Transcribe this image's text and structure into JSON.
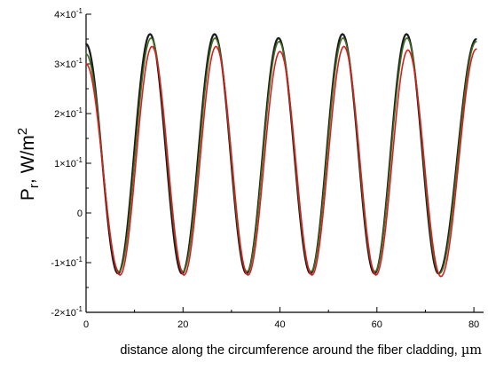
{
  "chart_data": {
    "type": "line",
    "title": "",
    "ylabel": {
      "main": "P",
      "sub": "r",
      "unit": ", W/m",
      "sup": "2"
    },
    "xlabel": {
      "text": "distance along the circumference around the fiber cladding, ",
      "unit": "µm"
    },
    "xlim": [
      0,
      82
    ],
    "ylim": [
      -0.2,
      0.4
    ],
    "x_ticks": [
      0,
      20,
      40,
      60,
      80
    ],
    "x_tick_labels": [
      "0",
      "20",
      "40",
      "60",
      "80"
    ],
    "y_ticks": [
      0.4,
      0.3,
      0.2,
      0.1,
      0,
      -0.1,
      -0.2
    ],
    "y_tick_labels": [
      {
        "base": "4×10",
        "exp": "-1"
      },
      {
        "base": "3×10",
        "exp": "-1"
      },
      {
        "base": "2×10",
        "exp": "-1"
      },
      {
        "base": "1×10",
        "exp": "-1"
      },
      {
        "base": "0",
        "exp": ""
      },
      {
        "base": "-1×10",
        "exp": "-1"
      },
      {
        "base": "-2×10",
        "exp": "-1"
      }
    ],
    "grid": false,
    "legend": "none",
    "series": [
      {
        "color": "#1a1a1a",
        "x": [
          0,
          6.6,
          13.2,
          19.8,
          26.5,
          33.1,
          39.7,
          46.3,
          52.9,
          59.5,
          66.1,
          72.7,
          80.5
        ],
        "y": [
          0.34,
          -0.122,
          0.36,
          -0.122,
          0.36,
          -0.122,
          0.352,
          -0.122,
          0.36,
          -0.122,
          0.36,
          -0.122,
          0.35
        ]
      },
      {
        "color": "#3f6f22",
        "x": [
          0,
          6.8,
          13.4,
          20.0,
          26.6,
          33.2,
          39.8,
          46.4,
          53.0,
          59.6,
          66.2,
          72.9,
          80.5
        ],
        "y": [
          0.32,
          -0.118,
          0.352,
          -0.118,
          0.352,
          -0.118,
          0.345,
          -0.118,
          0.352,
          -0.118,
          0.352,
          -0.122,
          0.345
        ]
      },
      {
        "color": "#d62020",
        "x": [
          0,
          7.0,
          13.6,
          20.2,
          26.8,
          33.4,
          40.0,
          46.6,
          53.2,
          59.8,
          66.4,
          73.2,
          80.5
        ],
        "y": [
          0.3,
          -0.125,
          0.335,
          -0.125,
          0.335,
          -0.125,
          0.325,
          -0.125,
          0.335,
          -0.125,
          0.328,
          -0.128,
          0.33
        ]
      }
    ]
  }
}
